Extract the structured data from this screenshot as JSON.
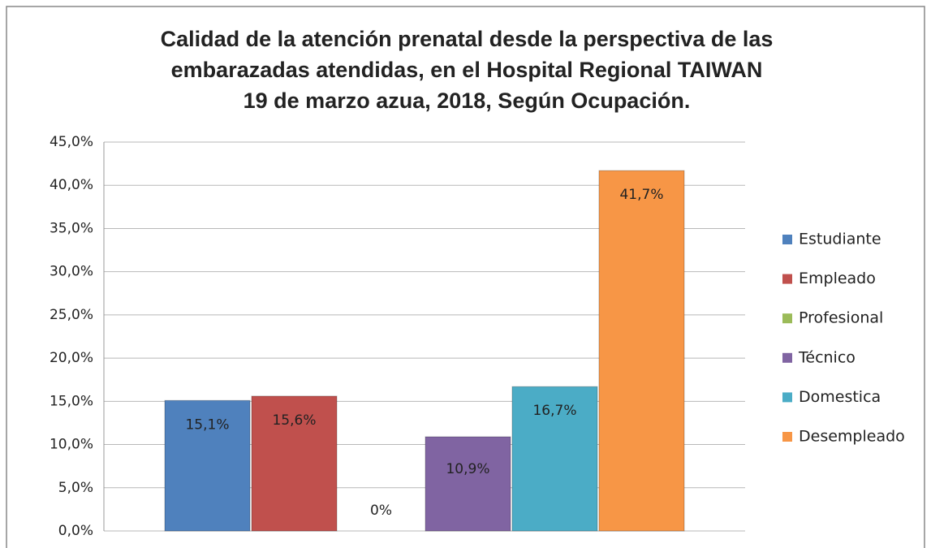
{
  "chart_data": {
    "type": "bar",
    "title": [
      "Calidad de la atención prenatal desde la perspectiva de las",
      "embarazadas atendidas, en el Hospital Regional TAIWAN",
      "19 de marzo azua, 2018, Según Ocupación."
    ],
    "categories": [
      null
    ],
    "series": [
      {
        "name": "Estudiante",
        "color": "#4f81bd",
        "values": [
          15.1
        ],
        "value_labels": [
          "15,1%"
        ]
      },
      {
        "name": "Empleado",
        "color": "#c0504d",
        "values": [
          15.6
        ],
        "value_labels": [
          "15,6%"
        ]
      },
      {
        "name": "Profesional",
        "color": "#9bbb59",
        "values": [
          0
        ],
        "value_labels": [
          "0%"
        ]
      },
      {
        "name": "Técnico",
        "color": "#8064a2",
        "values": [
          10.9
        ],
        "value_labels": [
          "10,9%"
        ]
      },
      {
        "name": "Domestica",
        "color": "#4bacc6",
        "values": [
          16.7
        ],
        "value_labels": [
          "16,7%"
        ]
      },
      {
        "name": "Desempleado",
        "color": "#f79646",
        "values": [
          41.7
        ],
        "value_labels": [
          "41,7%"
        ]
      }
    ],
    "ylim": [
      0,
      45
    ],
    "yticks": [
      {
        "value": 0,
        "label": "0,0%"
      },
      {
        "value": 5,
        "label": "5,0%"
      },
      {
        "value": 10,
        "label": "10,0%"
      },
      {
        "value": 15,
        "label": "15,0%"
      },
      {
        "value": 20,
        "label": "20,0%"
      },
      {
        "value": 25,
        "label": "25,0%"
      },
      {
        "value": 30,
        "label": "30,0%"
      },
      {
        "value": 35,
        "label": "35,0%"
      },
      {
        "value": 40,
        "label": "40,0%"
      },
      {
        "value": 45,
        "label": "45,0%"
      }
    ],
    "grid": true,
    "legend": "right"
  }
}
